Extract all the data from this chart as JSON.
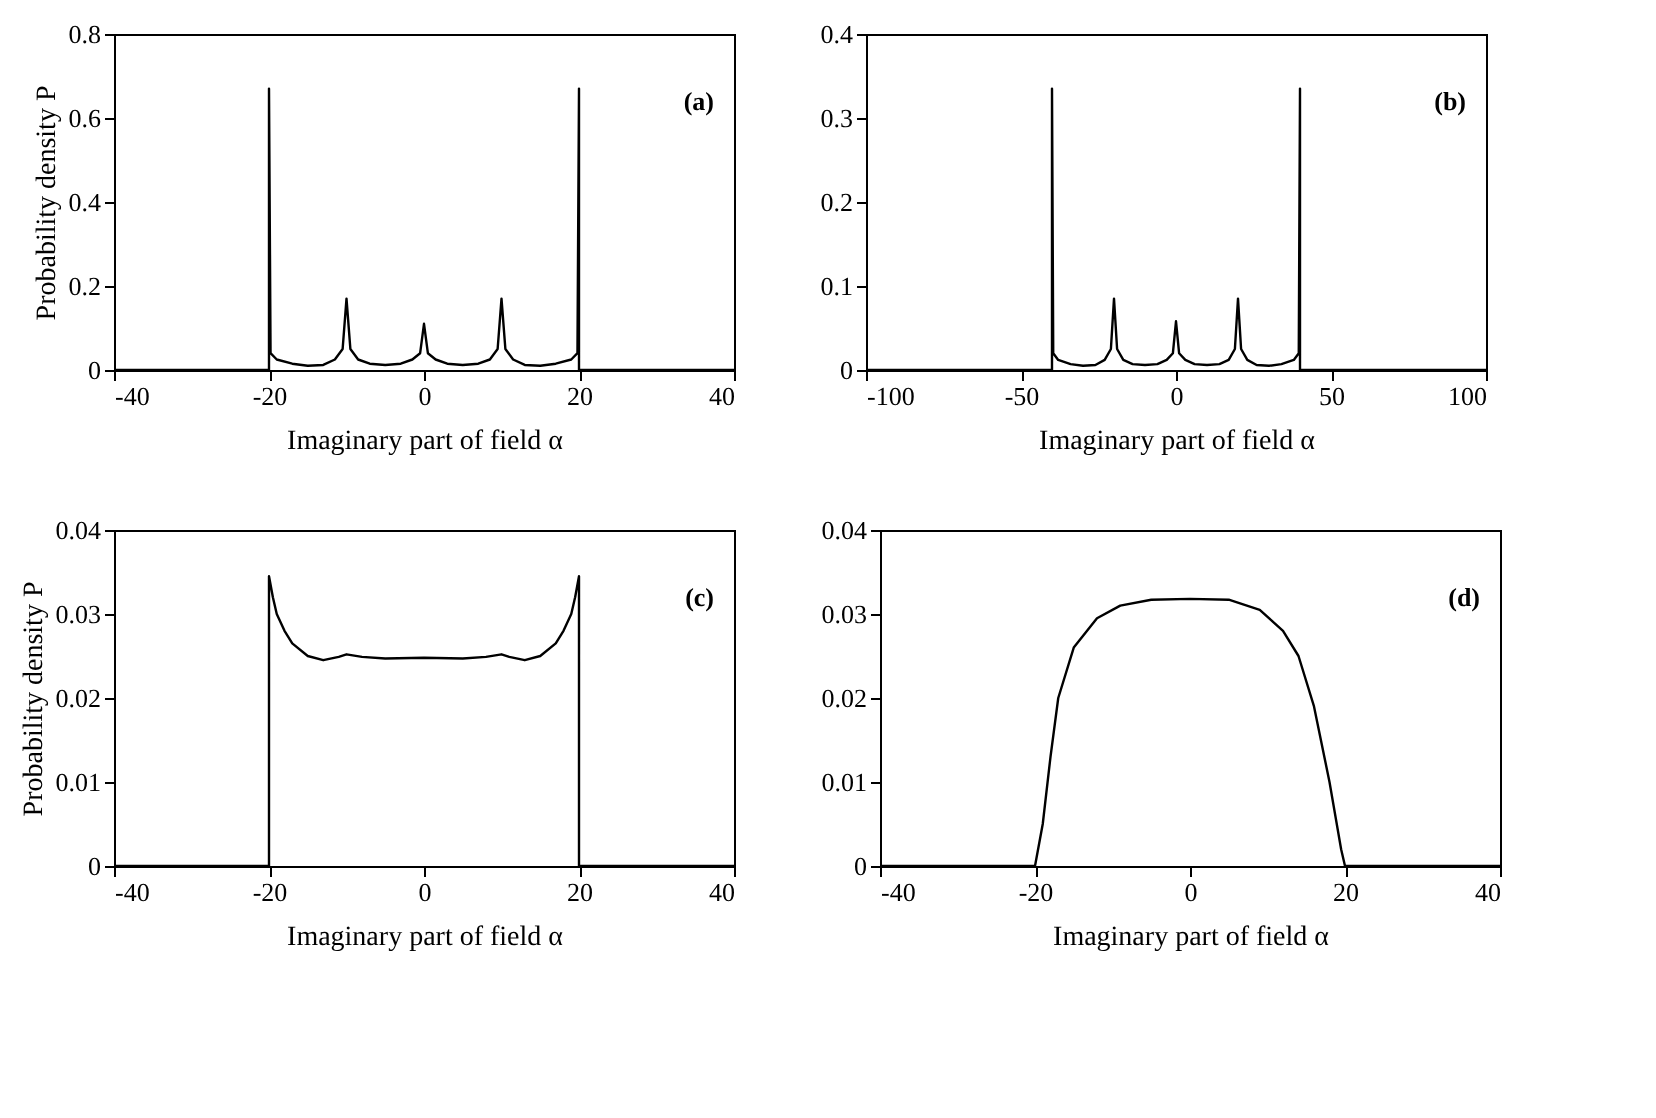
{
  "chart_data": [
    {
      "type": "line",
      "xlabel": "Imaginary part of field α",
      "ylabel": "Probability density P",
      "annotations": [
        "(a)"
      ],
      "xlim": [
        -40,
        40
      ],
      "xticks": [
        -40,
        -20,
        0,
        20,
        40
      ],
      "ylim": [
        0,
        0.8
      ],
      "yticks": [
        0,
        0.2,
        0.4,
        0.6,
        0.8
      ],
      "grid": false,
      "color": "#000000",
      "x": [
        -40,
        -20,
        -20,
        -19.8,
        -19,
        -17,
        -15,
        -13,
        -11.5,
        -10.5,
        -10,
        -9.5,
        -8.5,
        -7,
        -5,
        -3,
        -1.5,
        -0.5,
        0,
        0.5,
        1.5,
        3,
        5,
        7,
        8.5,
        9.5,
        10,
        10.5,
        11.5,
        13,
        15,
        17,
        19,
        19.8,
        20,
        20,
        40
      ],
      "values": [
        0,
        0,
        0.67,
        0.04,
        0.025,
        0.015,
        0.01,
        0.012,
        0.025,
        0.05,
        0.17,
        0.05,
        0.025,
        0.015,
        0.012,
        0.015,
        0.025,
        0.04,
        0.11,
        0.04,
        0.025,
        0.015,
        0.012,
        0.015,
        0.025,
        0.05,
        0.17,
        0.05,
        0.025,
        0.012,
        0.01,
        0.015,
        0.025,
        0.04,
        0.67,
        0,
        0
      ]
    },
    {
      "type": "line",
      "xlabel": "Imaginary part of field α",
      "annotations": [
        "(b)"
      ],
      "xlim": [
        -100,
        100
      ],
      "xticks": [
        -100,
        -50,
        0,
        50,
        100
      ],
      "ylim": [
        0,
        0.4
      ],
      "yticks": [
        0,
        0.1,
        0.2,
        0.3,
        0.4
      ],
      "grid": false,
      "color": "#000000",
      "x": [
        -100,
        -40,
        -40,
        -39.6,
        -38,
        -34,
        -30,
        -26,
        -23,
        -21,
        -20,
        -19,
        -17,
        -14,
        -10,
        -6,
        -3,
        -1,
        0,
        1,
        3,
        6,
        10,
        14,
        17,
        19,
        20,
        21,
        23,
        26,
        30,
        34,
        38,
        39.6,
        40,
        40,
        100
      ],
      "values": [
        0,
        0,
        0.335,
        0.02,
        0.012,
        0.007,
        0.005,
        0.006,
        0.012,
        0.025,
        0.085,
        0.025,
        0.012,
        0.007,
        0.006,
        0.007,
        0.012,
        0.02,
        0.058,
        0.02,
        0.012,
        0.007,
        0.006,
        0.007,
        0.012,
        0.025,
        0.085,
        0.025,
        0.012,
        0.006,
        0.005,
        0.007,
        0.012,
        0.02,
        0.335,
        0,
        0
      ]
    },
    {
      "type": "line",
      "xlabel": "Imaginary part of field α",
      "ylabel": "Probability density P",
      "annotations": [
        "(c)"
      ],
      "xlim": [
        -40,
        40
      ],
      "xticks": [
        -40,
        -20,
        0,
        20,
        40
      ],
      "ylim": [
        0,
        0.04
      ],
      "yticks": [
        0,
        0.01,
        0.02,
        0.03,
        0.04
      ],
      "grid": false,
      "color": "#000000",
      "x": [
        -40,
        -20,
        -20,
        -19.5,
        -19,
        -18,
        -17,
        -15,
        -13,
        -11,
        -10,
        -8,
        -5,
        0,
        5,
        8,
        10,
        11,
        13,
        15,
        17,
        18,
        19,
        19.5,
        20,
        20,
        40
      ],
      "values": [
        0,
        0,
        0.0345,
        0.032,
        0.03,
        0.028,
        0.0265,
        0.025,
        0.0245,
        0.0249,
        0.0252,
        0.0249,
        0.0247,
        0.0248,
        0.0247,
        0.0249,
        0.0252,
        0.0249,
        0.0245,
        0.025,
        0.0265,
        0.028,
        0.03,
        0.032,
        0.0345,
        0,
        0
      ]
    },
    {
      "type": "line",
      "xlabel": "Imaginary part of field α",
      "annotations": [
        "(d)"
      ],
      "xlim": [
        -40,
        40
      ],
      "xticks": [
        -40,
        -20,
        0,
        20,
        40
      ],
      "ylim": [
        0,
        0.04
      ],
      "yticks": [
        0,
        0.01,
        0.02,
        0.03,
        0.04
      ],
      "grid": false,
      "color": "#000000",
      "x": [
        -40,
        -20,
        -19,
        -18,
        -17,
        -15,
        -12,
        -9,
        -5,
        0,
        5,
        9,
        12,
        14,
        16,
        18,
        19.5,
        20,
        40
      ],
      "values": [
        0,
        0,
        0.005,
        0.013,
        0.02,
        0.026,
        0.0295,
        0.031,
        0.0317,
        0.0318,
        0.0317,
        0.0305,
        0.028,
        0.025,
        0.019,
        0.01,
        0.002,
        0,
        0
      ]
    }
  ]
}
